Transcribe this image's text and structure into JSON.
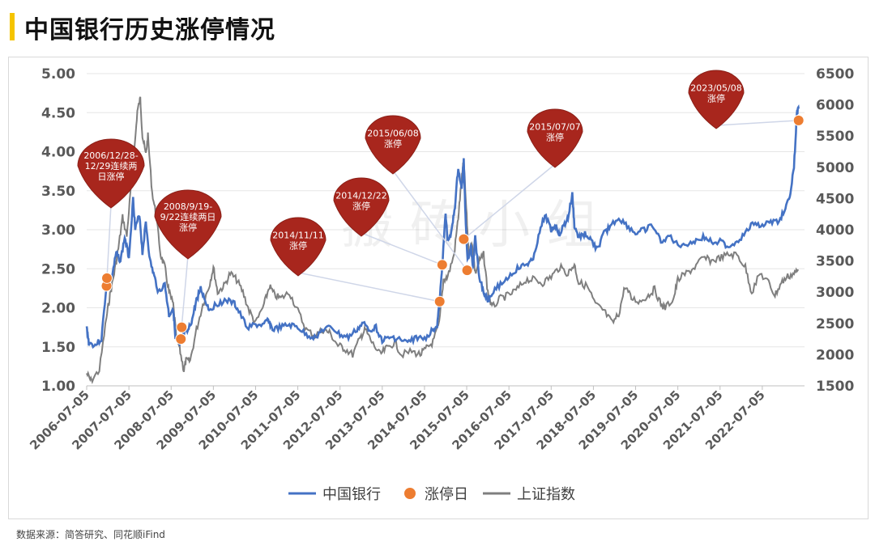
{
  "title": "中国银行历史涨停情况",
  "source": "数据来源：简答研究、同花顺iFind",
  "watermark": "搬 砖 小 组",
  "colors": {
    "bank": "#4472c4",
    "limit_up": "#ed7d31",
    "index": "#7f7f7f",
    "bubble": "#a8261d",
    "leader": "#cfd6e8"
  },
  "chart_data": {
    "type": "line",
    "x_tick_labels": [
      "2006-07-05",
      "2007-07-05",
      "2008-07-05",
      "2009-07-05",
      "2010-07-05",
      "2011-07-05",
      "2012-07-05",
      "2013-07-05",
      "2014-07-05",
      "2015-07-05",
      "2016-07-05",
      "2017-07-05",
      "2018-07-05",
      "2019-07-05",
      "2020-07-05",
      "2021-07-05",
      "2022-07-05"
    ],
    "x_range": [
      2006.5,
      2023.5
    ],
    "y_left": {
      "min": 1.0,
      "max": 5.0,
      "ticks": [
        "1.00",
        "1.50",
        "2.00",
        "2.50",
        "3.00",
        "3.50",
        "4.00",
        "4.50",
        "5.00"
      ]
    },
    "y_right": {
      "min": 1500,
      "max": 6500,
      "ticks": [
        "1500",
        "2000",
        "2500",
        "3000",
        "3500",
        "4000",
        "4500",
        "5000",
        "5500",
        "6000",
        "6500"
      ]
    },
    "legend": [
      "中国银行",
      "涨停日",
      "上证指数"
    ],
    "series": [
      {
        "name": "中国银行",
        "axis": "left",
        "points": [
          [
            2006.5,
            1.75
          ],
          [
            2006.55,
            1.55
          ],
          [
            2006.7,
            1.52
          ],
          [
            2006.85,
            1.6
          ],
          [
            2006.97,
            2.3
          ],
          [
            2007.1,
            2.4
          ],
          [
            2007.2,
            2.7
          ],
          [
            2007.3,
            2.6
          ],
          [
            2007.4,
            2.9
          ],
          [
            2007.5,
            2.65
          ],
          [
            2007.6,
            3.4
          ],
          [
            2007.65,
            3.0
          ],
          [
            2007.75,
            3.2
          ],
          [
            2007.82,
            2.7
          ],
          [
            2007.9,
            3.1
          ],
          [
            2008.0,
            2.6
          ],
          [
            2008.1,
            2.4
          ],
          [
            2008.2,
            2.2
          ],
          [
            2008.35,
            2.3
          ],
          [
            2008.45,
            1.9
          ],
          [
            2008.55,
            2.0
          ],
          [
            2008.6,
            1.6
          ],
          [
            2008.7,
            1.5
          ],
          [
            2008.8,
            1.65
          ],
          [
            2008.9,
            1.7
          ],
          [
            2009.0,
            1.85
          ],
          [
            2009.1,
            2.1
          ],
          [
            2009.2,
            2.25
          ],
          [
            2009.3,
            2.1
          ],
          [
            2009.4,
            1.98
          ],
          [
            2009.6,
            2.05
          ],
          [
            2009.8,
            2.1
          ],
          [
            2010.0,
            2.05
          ],
          [
            2010.1,
            1.95
          ],
          [
            2010.3,
            1.75
          ],
          [
            2010.5,
            1.78
          ],
          [
            2010.7,
            1.78
          ],
          [
            2010.8,
            1.85
          ],
          [
            2010.9,
            1.72
          ],
          [
            2011.1,
            1.75
          ],
          [
            2011.3,
            1.78
          ],
          [
            2011.5,
            1.75
          ],
          [
            2011.7,
            1.65
          ],
          [
            2011.9,
            1.62
          ],
          [
            2012.1,
            1.72
          ],
          [
            2012.3,
            1.75
          ],
          [
            2012.5,
            1.65
          ],
          [
            2012.7,
            1.62
          ],
          [
            2012.9,
            1.72
          ],
          [
            2013.05,
            1.8
          ],
          [
            2013.2,
            1.72
          ],
          [
            2013.35,
            1.75
          ],
          [
            2013.5,
            1.58
          ],
          [
            2013.7,
            1.62
          ],
          [
            2013.9,
            1.6
          ],
          [
            2014.1,
            1.55
          ],
          [
            2014.3,
            1.62
          ],
          [
            2014.5,
            1.6
          ],
          [
            2014.7,
            1.72
          ],
          [
            2014.8,
            1.78
          ],
          [
            2014.86,
            2.08
          ],
          [
            2014.92,
            2.55
          ],
          [
            2015.0,
            3.2
          ],
          [
            2015.05,
            2.85
          ],
          [
            2015.15,
            3.0
          ],
          [
            2015.22,
            3.3
          ],
          [
            2015.3,
            3.8
          ],
          [
            2015.38,
            3.5
          ],
          [
            2015.43,
            3.9
          ],
          [
            2015.47,
            3.2
          ],
          [
            2015.52,
            2.6
          ],
          [
            2015.6,
            2.8
          ],
          [
            2015.65,
            2.5
          ],
          [
            2015.7,
            2.9
          ],
          [
            2015.8,
            2.4
          ],
          [
            2015.9,
            2.2
          ],
          [
            2016.0,
            2.1
          ],
          [
            2016.1,
            2.2
          ],
          [
            2016.3,
            2.3
          ],
          [
            2016.5,
            2.4
          ],
          [
            2016.7,
            2.5
          ],
          [
            2016.9,
            2.55
          ],
          [
            2017.05,
            2.6
          ],
          [
            2017.2,
            2.9
          ],
          [
            2017.35,
            3.2
          ],
          [
            2017.5,
            3.0
          ],
          [
            2017.6,
            3.05
          ],
          [
            2017.7,
            2.95
          ],
          [
            2017.8,
            3.05
          ],
          [
            2017.9,
            3.15
          ],
          [
            2018.0,
            3.45
          ],
          [
            2018.05,
            3.05
          ],
          [
            2018.15,
            2.9
          ],
          [
            2018.3,
            2.95
          ],
          [
            2018.45,
            2.85
          ],
          [
            2018.6,
            2.75
          ],
          [
            2018.75,
            2.95
          ],
          [
            2018.9,
            3.05
          ],
          [
            2019.1,
            3.15
          ],
          [
            2019.3,
            3.05
          ],
          [
            2019.5,
            2.95
          ],
          [
            2019.7,
            3.0
          ],
          [
            2019.9,
            3.05
          ],
          [
            2020.1,
            2.85
          ],
          [
            2020.3,
            2.92
          ],
          [
            2020.5,
            2.8
          ],
          [
            2020.7,
            2.82
          ],
          [
            2020.9,
            2.85
          ],
          [
            2021.1,
            2.9
          ],
          [
            2021.3,
            2.85
          ],
          [
            2021.5,
            2.85
          ],
          [
            2021.7,
            2.78
          ],
          [
            2021.9,
            2.85
          ],
          [
            2022.1,
            2.95
          ],
          [
            2022.3,
            3.1
          ],
          [
            2022.5,
            3.05
          ],
          [
            2022.7,
            3.1
          ],
          [
            2022.9,
            3.1
          ],
          [
            2023.05,
            3.3
          ],
          [
            2023.15,
            3.4
          ],
          [
            2023.25,
            3.8
          ],
          [
            2023.32,
            4.5
          ],
          [
            2023.36,
            4.55
          ]
        ]
      },
      {
        "name": "上证指数",
        "axis": "right",
        "points": [
          [
            2006.5,
            1700
          ],
          [
            2006.6,
            1580
          ],
          [
            2006.8,
            1750
          ],
          [
            2006.97,
            2600
          ],
          [
            2007.05,
            2950
          ],
          [
            2007.15,
            3300
          ],
          [
            2007.25,
            3700
          ],
          [
            2007.35,
            4200
          ],
          [
            2007.45,
            3900
          ],
          [
            2007.55,
            4700
          ],
          [
            2007.62,
            5200
          ],
          [
            2007.7,
            5900
          ],
          [
            2007.77,
            6100
          ],
          [
            2007.82,
            5500
          ],
          [
            2007.9,
            5200
          ],
          [
            2007.95,
            5500
          ],
          [
            2008.05,
            4600
          ],
          [
            2008.15,
            4200
          ],
          [
            2008.25,
            3600
          ],
          [
            2008.35,
            3400
          ],
          [
            2008.45,
            3000
          ],
          [
            2008.55,
            2800
          ],
          [
            2008.62,
            2300
          ],
          [
            2008.7,
            2100
          ],
          [
            2008.8,
            1750
          ],
          [
            2008.85,
            1900
          ],
          [
            2008.95,
            1900
          ],
          [
            2009.1,
            2400
          ],
          [
            2009.25,
            2800
          ],
          [
            2009.4,
            3100
          ],
          [
            2009.5,
            3400
          ],
          [
            2009.6,
            3000
          ],
          [
            2009.75,
            3100
          ],
          [
            2009.9,
            3300
          ],
          [
            2010.05,
            3200
          ],
          [
            2010.2,
            3000
          ],
          [
            2010.35,
            2700
          ],
          [
            2010.5,
            2500
          ],
          [
            2010.7,
            2800
          ],
          [
            2010.83,
            3100
          ],
          [
            2010.95,
            2950
          ],
          [
            2011.1,
            2900
          ],
          [
            2011.3,
            3000
          ],
          [
            2011.5,
            2700
          ],
          [
            2011.7,
            2400
          ],
          [
            2011.9,
            2300
          ],
          [
            2012.1,
            2400
          ],
          [
            2012.25,
            2350
          ],
          [
            2012.45,
            2150
          ],
          [
            2012.6,
            2100
          ],
          [
            2012.8,
            2000
          ],
          [
            2013.0,
            2300
          ],
          [
            2013.1,
            2400
          ],
          [
            2013.25,
            2200
          ],
          [
            2013.45,
            2000
          ],
          [
            2013.6,
            2100
          ],
          [
            2013.8,
            2200
          ],
          [
            2013.95,
            2000
          ],
          [
            2014.2,
            2050
          ],
          [
            2014.4,
            2000
          ],
          [
            2014.55,
            2100
          ],
          [
            2014.7,
            2200
          ],
          [
            2014.85,
            2500
          ],
          [
            2014.95,
            3200
          ],
          [
            2015.05,
            3250
          ],
          [
            2015.2,
            3600
          ],
          [
            2015.3,
            4200
          ],
          [
            2015.38,
            4800
          ],
          [
            2015.43,
            5100
          ],
          [
            2015.5,
            4200
          ],
          [
            2015.55,
            3600
          ],
          [
            2015.63,
            3800
          ],
          [
            2015.7,
            3300
          ],
          [
            2015.8,
            3500
          ],
          [
            2015.9,
            3600
          ],
          [
            2016.0,
            3000
          ],
          [
            2016.1,
            2750
          ],
          [
            2016.3,
            2900
          ],
          [
            2016.5,
            2950
          ],
          [
            2016.7,
            3050
          ],
          [
            2016.9,
            3200
          ],
          [
            2017.1,
            3200
          ],
          [
            2017.3,
            3150
          ],
          [
            2017.5,
            3250
          ],
          [
            2017.7,
            3400
          ],
          [
            2017.9,
            3300
          ],
          [
            2018.05,
            3450
          ],
          [
            2018.15,
            3150
          ],
          [
            2018.35,
            3100
          ],
          [
            2018.55,
            2800
          ],
          [
            2018.75,
            2700
          ],
          [
            2018.95,
            2500
          ],
          [
            2019.1,
            2650
          ],
          [
            2019.25,
            3100
          ],
          [
            2019.4,
            2900
          ],
          [
            2019.6,
            2850
          ],
          [
            2019.8,
            2950
          ],
          [
            2019.95,
            3050
          ],
          [
            2020.1,
            2800
          ],
          [
            2020.2,
            2750
          ],
          [
            2020.4,
            2900
          ],
          [
            2020.5,
            3200
          ],
          [
            2020.7,
            3300
          ],
          [
            2020.9,
            3400
          ],
          [
            2021.1,
            3550
          ],
          [
            2021.3,
            3500
          ],
          [
            2021.5,
            3550
          ],
          [
            2021.7,
            3600
          ],
          [
            2021.9,
            3600
          ],
          [
            2022.1,
            3400
          ],
          [
            2022.25,
            3000
          ],
          [
            2022.45,
            3300
          ],
          [
            2022.65,
            3150
          ],
          [
            2022.8,
            2950
          ],
          [
            2022.95,
            3150
          ],
          [
            2023.1,
            3250
          ],
          [
            2023.25,
            3300
          ],
          [
            2023.36,
            3350
          ]
        ]
      }
    ],
    "limit_up_points": [
      [
        2006.97,
        2.28
      ],
      [
        2006.98,
        2.38
      ],
      [
        2008.73,
        1.6
      ],
      [
        2008.75,
        1.75
      ],
      [
        2014.86,
        2.08
      ],
      [
        2014.92,
        2.55
      ],
      [
        2015.43,
        2.88
      ],
      [
        2015.51,
        2.48
      ],
      [
        2023.36,
        4.4
      ]
    ],
    "annotations": [
      {
        "lines": [
          "2006/12/28-",
          "12/29连续两",
          "日涨停"
        ],
        "target": [
          2006.98,
          2.38
        ]
      },
      {
        "lines": [
          "2008/9/19-",
          "9/22连续两日",
          "涨停"
        ],
        "target": [
          2008.74,
          1.7
        ]
      },
      {
        "lines": [
          "2014/11/11",
          "涨停"
        ],
        "target": [
          2014.86,
          2.08
        ]
      },
      {
        "lines": [
          "2014/12/22",
          "涨停"
        ],
        "target": [
          2014.92,
          2.55
        ]
      },
      {
        "lines": [
          "2015/06/08",
          "涨停"
        ],
        "target": [
          2015.51,
          2.48
        ]
      },
      {
        "lines": [
          "2015/07/07",
          "涨停"
        ],
        "target": [
          2015.43,
          2.88
        ]
      },
      {
        "lines": [
          "2023/05/08",
          "涨停"
        ],
        "target": [
          2023.36,
          4.4
        ]
      }
    ]
  }
}
